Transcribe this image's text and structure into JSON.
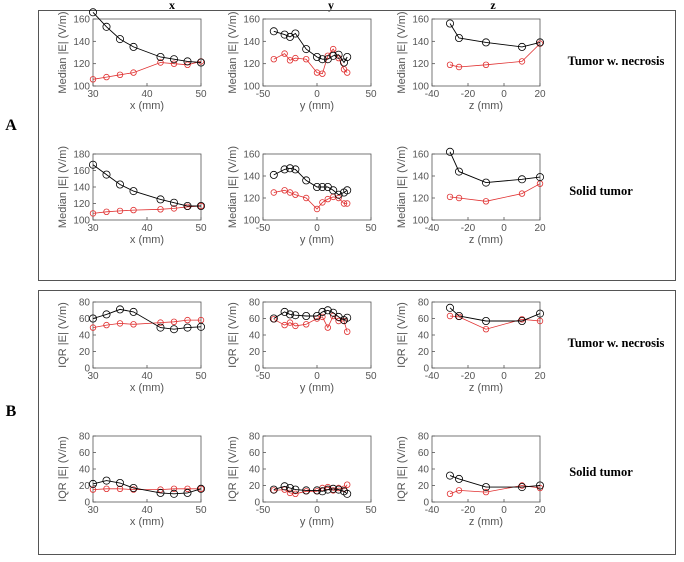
{
  "column_headers": [
    "x",
    "y",
    "z"
  ],
  "sections": [
    {
      "label": "A",
      "row_labels": [
        "Tumor w. necrosis",
        "Solid tumor"
      ]
    },
    {
      "label": "B",
      "row_labels": [
        "Tumor w. necrosis",
        "Solid tumor"
      ]
    }
  ],
  "colors": {
    "series_black": "#000000",
    "series_red": "#e03030",
    "frame": "#555555",
    "box": "#555555"
  },
  "chart_data": [
    {
      "type": "line",
      "section": "A",
      "row": 0,
      "col": 0,
      "xlabel": "x (mm)",
      "ylabel": "Median |E| (V/m)",
      "xlim": [
        30,
        50
      ],
      "ylim": [
        100,
        160
      ],
      "xticks": [
        30,
        40,
        50
      ],
      "yticks": [
        100,
        120,
        140,
        160
      ],
      "series": [
        {
          "name": "black",
          "x": [
            30,
            32.5,
            35,
            37.5,
            42.5,
            45,
            47.5,
            50
          ],
          "y": [
            166,
            153,
            142,
            135,
            126,
            124,
            122,
            121
          ]
        },
        {
          "name": "red",
          "x": [
            30,
            32.5,
            35,
            37.5,
            42.5,
            45,
            47.5,
            50
          ],
          "y": [
            106,
            108,
            110,
            112,
            121,
            120,
            119,
            122
          ]
        }
      ]
    },
    {
      "type": "line",
      "section": "A",
      "row": 0,
      "col": 1,
      "xlabel": "y (mm)",
      "ylabel": "Median |E| (V/m)",
      "xlim": [
        -50,
        50
      ],
      "ylim": [
        100,
        160
      ],
      "xticks": [
        -50,
        0,
        50
      ],
      "yticks": [
        100,
        120,
        140,
        160
      ],
      "series": [
        {
          "name": "black",
          "x": [
            -40,
            -30,
            -25,
            -20,
            -10,
            0,
            5,
            10,
            15,
            20,
            25,
            28
          ],
          "y": [
            149,
            146,
            144,
            147,
            133,
            126,
            124,
            124,
            127,
            128,
            121,
            126
          ]
        },
        {
          "name": "red",
          "x": [
            -40,
            -30,
            -25,
            -20,
            -10,
            0,
            5,
            10,
            15,
            20,
            25,
            28
          ],
          "y": [
            124,
            129,
            123,
            125,
            124,
            112,
            111,
            127,
            133,
            125,
            115,
            112
          ]
        }
      ]
    },
    {
      "type": "line",
      "section": "A",
      "row": 0,
      "col": 2,
      "xlabel": "z (mm)",
      "ylabel": "Median |E| (V/m)",
      "xlim": [
        -40,
        20
      ],
      "ylim": [
        100,
        160
      ],
      "xticks": [
        -40,
        -20,
        0,
        20
      ],
      "yticks": [
        100,
        120,
        140,
        160
      ],
      "series": [
        {
          "name": "black",
          "x": [
            -30,
            -25,
            -10,
            10,
            20
          ],
          "y": [
            156,
            143,
            139,
            135,
            139
          ]
        },
        {
          "name": "red",
          "x": [
            -30,
            -25,
            -10,
            10,
            20
          ],
          "y": [
            119,
            117,
            119,
            122,
            138
          ]
        }
      ]
    },
    {
      "type": "line",
      "section": "A",
      "row": 1,
      "col": 0,
      "xlabel": "x (mm)",
      "ylabel": "Median |E| (V/m)",
      "xlim": [
        30,
        50
      ],
      "ylim": [
        100,
        180
      ],
      "xticks": [
        30,
        40,
        50
      ],
      "yticks": [
        100,
        120,
        140,
        160,
        180
      ],
      "series": [
        {
          "name": "black",
          "x": [
            30,
            32.5,
            35,
            37.5,
            42.5,
            45,
            47.5,
            50
          ],
          "y": [
            167,
            155,
            143,
            135,
            125,
            121,
            117,
            117
          ]
        },
        {
          "name": "red",
          "x": [
            30,
            32.5,
            35,
            37.5,
            42.5,
            45,
            47.5,
            50
          ],
          "y": [
            108,
            110,
            111,
            112,
            113,
            114,
            116,
            117
          ]
        }
      ]
    },
    {
      "type": "line",
      "section": "A",
      "row": 1,
      "col": 1,
      "xlabel": "y (mm)",
      "ylabel": "Median |E| (V/m)",
      "xlim": [
        -50,
        50
      ],
      "ylim": [
        100,
        160
      ],
      "xticks": [
        -50,
        0,
        50
      ],
      "yticks": [
        100,
        120,
        140,
        160
      ],
      "series": [
        {
          "name": "black",
          "x": [
            -40,
            -30,
            -25,
            -20,
            -10,
            0,
            5,
            10,
            15,
            20,
            25,
            28
          ],
          "y": [
            141,
            146,
            147,
            146,
            136,
            130,
            130,
            130,
            127,
            123,
            125,
            127
          ]
        },
        {
          "name": "red",
          "x": [
            -40,
            -30,
            -25,
            -20,
            -10,
            0,
            5,
            10,
            15,
            20,
            25,
            28
          ],
          "y": [
            125,
            127,
            125,
            123,
            120,
            110,
            116,
            119,
            121,
            120,
            115,
            115
          ]
        }
      ]
    },
    {
      "type": "line",
      "section": "A",
      "row": 1,
      "col": 2,
      "xlabel": "z (mm)",
      "ylabel": "Median |E| (V/m)",
      "xlim": [
        -40,
        20
      ],
      "ylim": [
        100,
        160
      ],
      "xticks": [
        -40,
        -20,
        0,
        20
      ],
      "yticks": [
        100,
        120,
        140,
        160
      ],
      "series": [
        {
          "name": "black",
          "x": [
            -30,
            -25,
            -10,
            10,
            20
          ],
          "y": [
            162,
            144,
            134,
            137,
            139
          ]
        },
        {
          "name": "red",
          "x": [
            -30,
            -25,
            -10,
            10,
            20
          ],
          "y": [
            121,
            120,
            117,
            124,
            133
          ]
        }
      ]
    },
    {
      "type": "line",
      "section": "B",
      "row": 0,
      "col": 0,
      "xlabel": "x (mm)",
      "ylabel": "IQR |E| (V/m)",
      "xlim": [
        30,
        50
      ],
      "ylim": [
        0,
        80
      ],
      "xticks": [
        30,
        40,
        50
      ],
      "yticks": [
        0,
        20,
        40,
        60,
        80
      ],
      "series": [
        {
          "name": "black",
          "x": [
            30,
            32.5,
            35,
            37.5,
            42.5,
            45,
            47.5,
            50
          ],
          "y": [
            60,
            65,
            71,
            68,
            49,
            47,
            49,
            50
          ]
        },
        {
          "name": "red",
          "x": [
            30,
            32.5,
            35,
            37.5,
            42.5,
            45,
            47.5,
            50
          ],
          "y": [
            49,
            52,
            54,
            53,
            55,
            56,
            58,
            58
          ]
        }
      ]
    },
    {
      "type": "line",
      "section": "B",
      "row": 0,
      "col": 1,
      "xlabel": "y (mm)",
      "ylabel": "IQR |E| (V/m)",
      "xlim": [
        -50,
        50
      ],
      "ylim": [
        0,
        80
      ],
      "xticks": [
        -50,
        0,
        50
      ],
      "yticks": [
        0,
        20,
        40,
        60,
        80
      ],
      "series": [
        {
          "name": "black",
          "x": [
            -40,
            -30,
            -25,
            -20,
            -10,
            0,
            5,
            10,
            15,
            20,
            25,
            28
          ],
          "y": [
            60,
            68,
            65,
            64,
            63,
            63,
            68,
            70,
            67,
            62,
            58,
            61
          ]
        },
        {
          "name": "red",
          "x": [
            -40,
            -30,
            -25,
            -20,
            -10,
            0,
            5,
            10,
            15,
            20,
            25,
            28
          ],
          "y": [
            59,
            52,
            55,
            51,
            53,
            60,
            62,
            49,
            63,
            57,
            57,
            44
          ]
        }
      ]
    },
    {
      "type": "line",
      "section": "B",
      "row": 0,
      "col": 2,
      "xlabel": "z (mm)",
      "ylabel": "IQR |E| (V/m)",
      "xlim": [
        -40,
        20
      ],
      "ylim": [
        0,
        80
      ],
      "xticks": [
        -40,
        -20,
        0,
        20
      ],
      "yticks": [
        0,
        20,
        40,
        60,
        80
      ],
      "series": [
        {
          "name": "black",
          "x": [
            -30,
            -25,
            -10,
            10,
            20
          ],
          "y": [
            73,
            63,
            57,
            57,
            66
          ]
        },
        {
          "name": "red",
          "x": [
            -30,
            -25,
            -10,
            10,
            20
          ],
          "y": [
            63,
            62,
            47,
            59,
            57
          ]
        }
      ]
    },
    {
      "type": "line",
      "section": "B",
      "row": 1,
      "col": 0,
      "xlabel": "x (mm)",
      "ylabel": "IQR |E| (V/m)",
      "xlim": [
        30,
        50
      ],
      "ylim": [
        0,
        80
      ],
      "xticks": [
        30,
        40,
        50
      ],
      "yticks": [
        0,
        20,
        40,
        60,
        80
      ],
      "series": [
        {
          "name": "black",
          "x": [
            30,
            32.5,
            35,
            37.5,
            42.5,
            45,
            47.5,
            50
          ],
          "y": [
            22,
            26,
            23,
            17,
            11,
            10,
            11,
            16
          ]
        },
        {
          "name": "red",
          "x": [
            30,
            32.5,
            35,
            37.5,
            42.5,
            45,
            47.5,
            50
          ],
          "y": [
            15,
            16,
            16,
            15,
            15,
            16,
            16,
            16
          ]
        }
      ]
    },
    {
      "type": "line",
      "section": "B",
      "row": 1,
      "col": 1,
      "xlabel": "y (mm)",
      "ylabel": "IQR |E| (V/m)",
      "xlim": [
        -50,
        50
      ],
      "ylim": [
        0,
        80
      ],
      "xticks": [
        -50,
        0,
        50
      ],
      "yticks": [
        0,
        20,
        40,
        60,
        80
      ],
      "series": [
        {
          "name": "black",
          "x": [
            -40,
            -30,
            -25,
            -20,
            -10,
            0,
            5,
            10,
            15,
            20,
            25,
            28
          ],
          "y": [
            15,
            19,
            17,
            15,
            14,
            14,
            13,
            15,
            16,
            15,
            13,
            10
          ]
        },
        {
          "name": "red",
          "x": [
            -40,
            -30,
            -25,
            -20,
            -10,
            0,
            5,
            10,
            15,
            20,
            25,
            28
          ],
          "y": [
            14,
            15,
            11,
            10,
            13,
            13,
            17,
            18,
            14,
            17,
            16,
            21
          ]
        }
      ]
    },
    {
      "type": "line",
      "section": "B",
      "row": 1,
      "col": 2,
      "xlabel": "z (mm)",
      "ylabel": "IQR |E| (V/m)",
      "xlim": [
        -40,
        20
      ],
      "ylim": [
        0,
        80
      ],
      "xticks": [
        -40,
        -20,
        0,
        20
      ],
      "yticks": [
        0,
        20,
        40,
        60,
        80
      ],
      "series": [
        {
          "name": "black",
          "x": [
            -30,
            -25,
            -10,
            10,
            20
          ],
          "y": [
            32,
            28,
            18,
            18,
            20
          ]
        },
        {
          "name": "red",
          "x": [
            -30,
            -25,
            -10,
            10,
            20
          ],
          "y": [
            10,
            14,
            12,
            20,
            17
          ]
        }
      ]
    }
  ]
}
